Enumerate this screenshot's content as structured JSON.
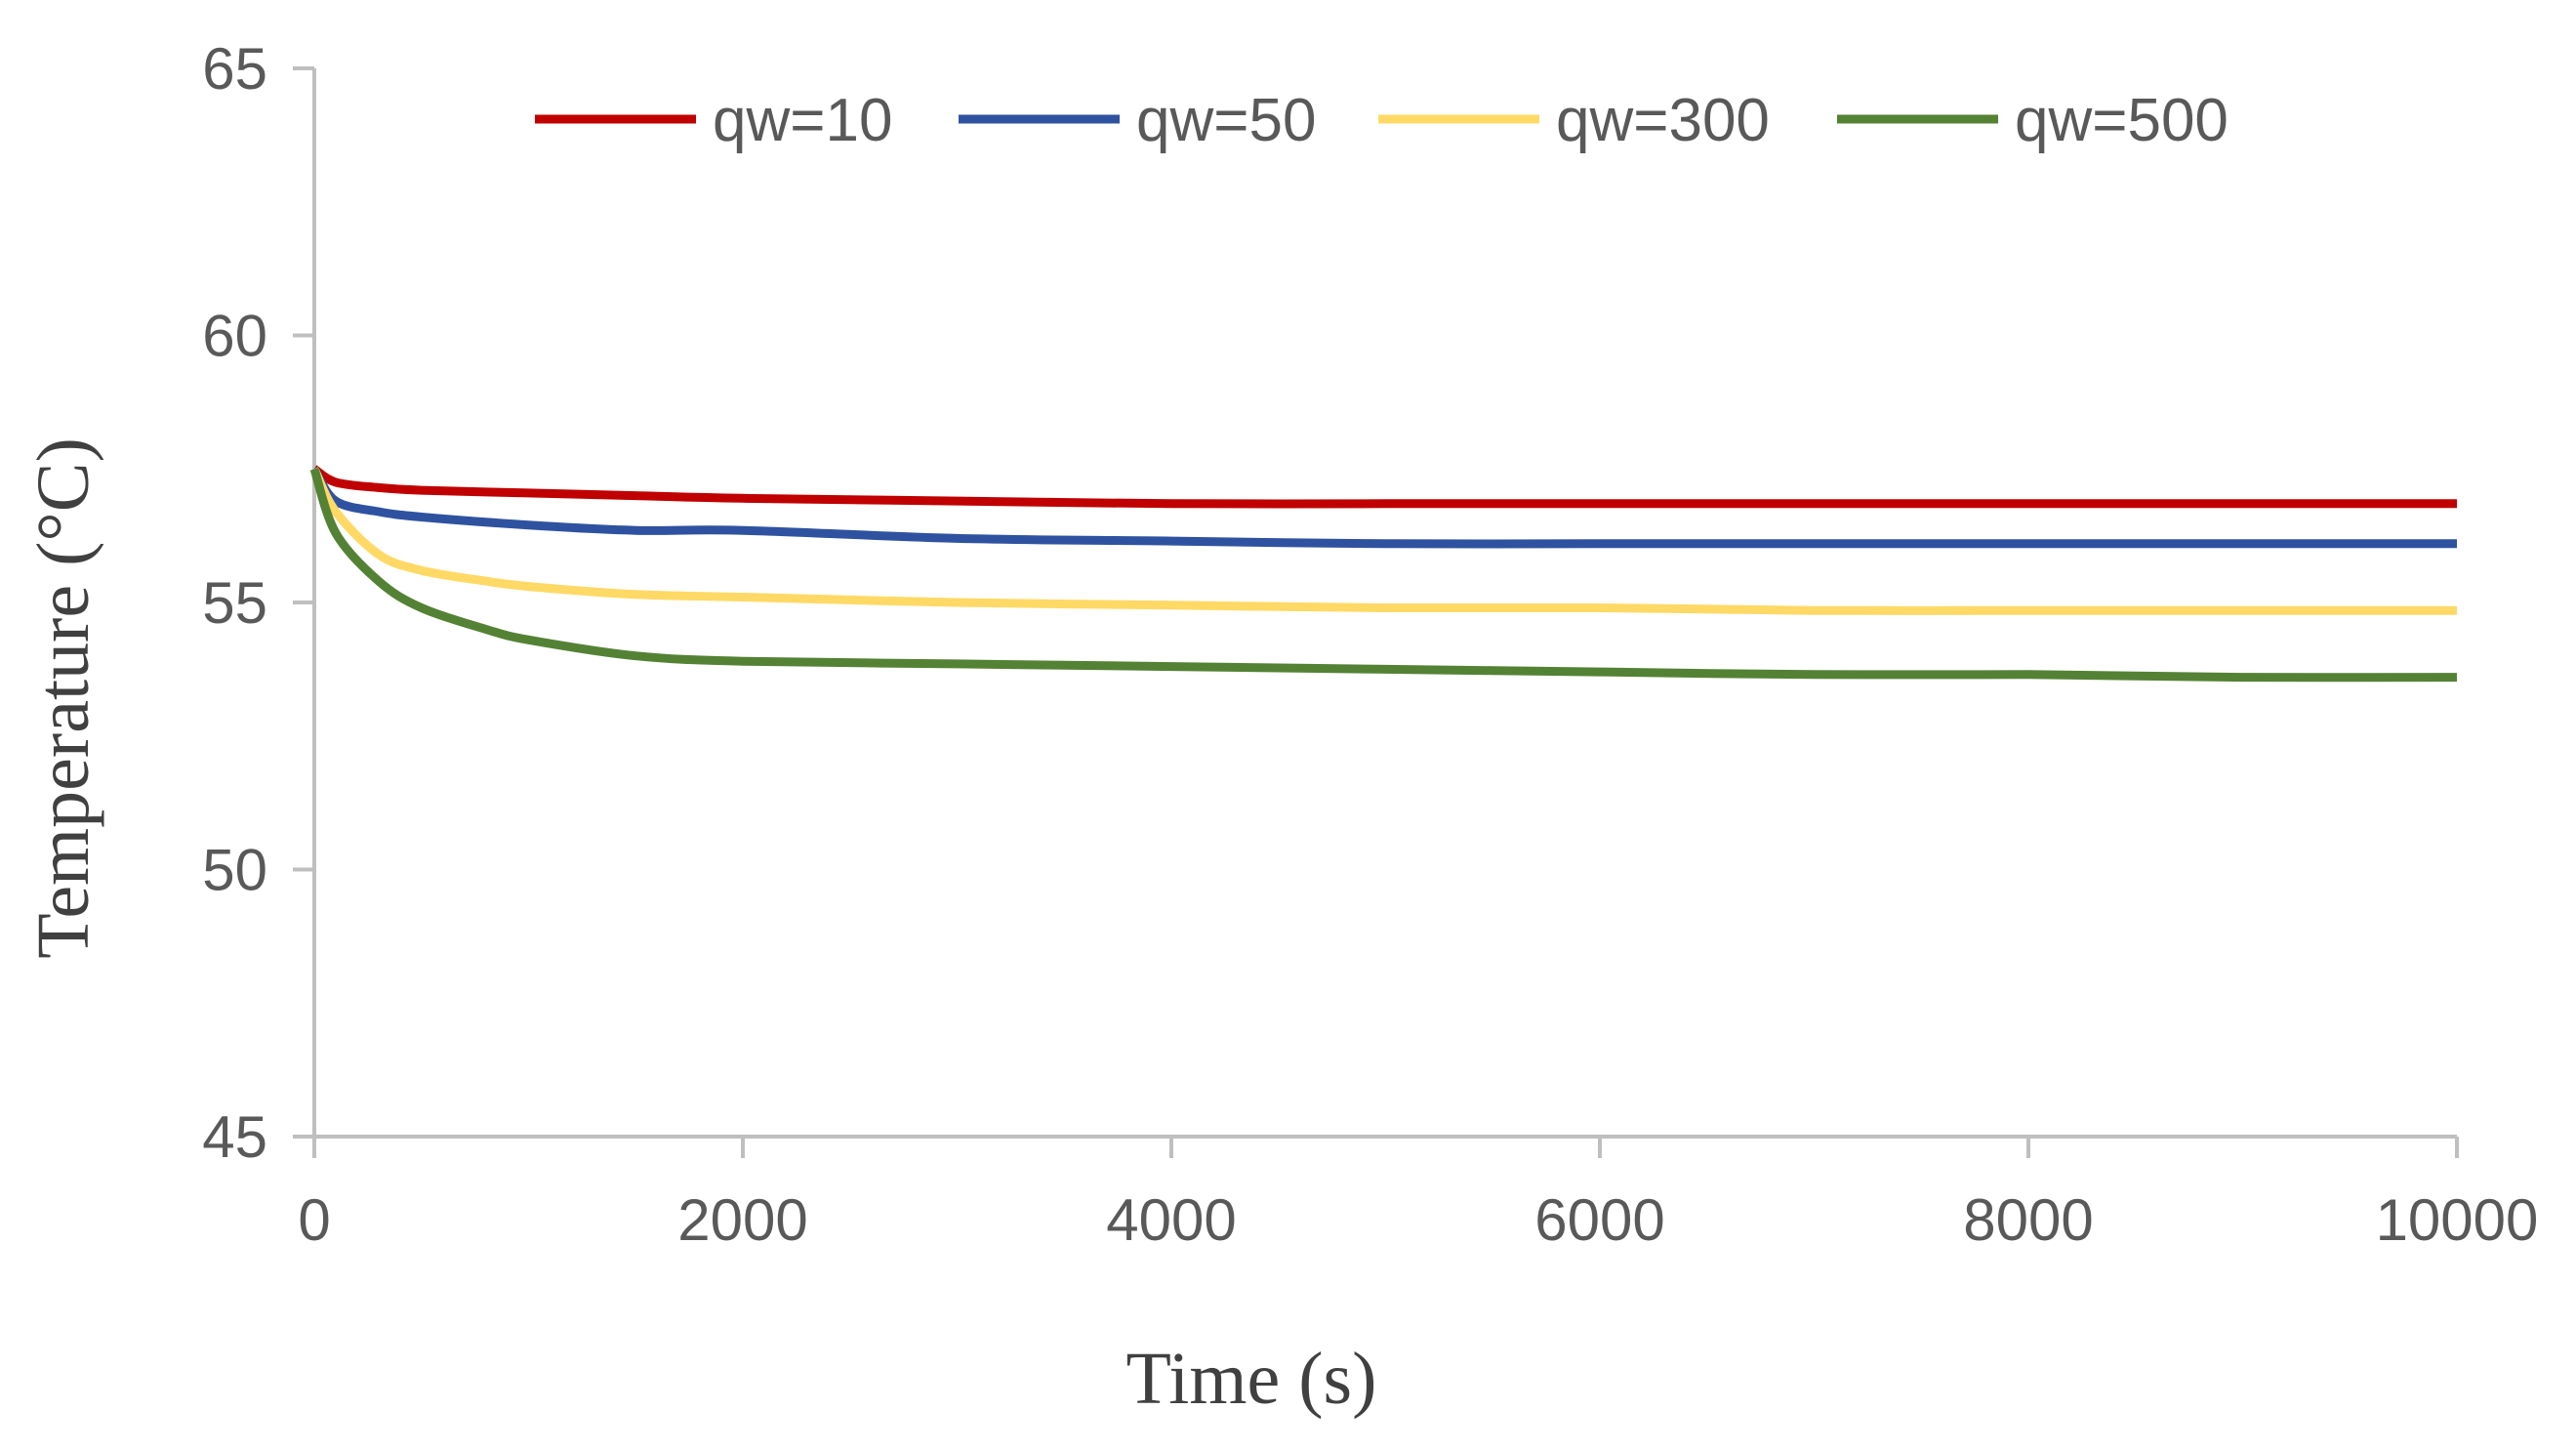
{
  "chart_data": {
    "type": "line",
    "title": "",
    "xlabel": "Time (s)",
    "ylabel": "Temperature (°C)",
    "xlim": [
      0,
      10000
    ],
    "ylim": [
      45,
      65
    ],
    "xticks": [
      0,
      2000,
      4000,
      6000,
      8000,
      10000
    ],
    "yticks": [
      45,
      50,
      55,
      60,
      65
    ],
    "xtick_labels": [
      "0",
      "2000",
      "4000",
      "6000",
      "8000",
      "10000"
    ],
    "ytick_labels": [
      "45",
      "50",
      "55",
      "60",
      "65"
    ],
    "grid": false,
    "legend_position": "top",
    "colors": {
      "axis": "#bfbfbf"
    },
    "series": [
      {
        "name": "qw=10",
        "color": "#c00000",
        "x": [
          0,
          100,
          300,
          500,
          1000,
          1500,
          2000,
          3000,
          4000,
          5000,
          6000,
          7000,
          8000,
          9000,
          10000
        ],
        "y": [
          57.5,
          57.25,
          57.15,
          57.1,
          57.05,
          57.0,
          56.95,
          56.9,
          56.85,
          56.85,
          56.85,
          56.85,
          56.85,
          56.85,
          56.85
        ]
      },
      {
        "name": "qw=50",
        "color": "#2f52a0",
        "x": [
          0,
          100,
          300,
          500,
          1000,
          1500,
          2000,
          3000,
          4000,
          5000,
          6000,
          7000,
          8000,
          9000,
          10000
        ],
        "y": [
          57.5,
          56.9,
          56.7,
          56.6,
          56.45,
          56.35,
          56.35,
          56.2,
          56.15,
          56.1,
          56.1,
          56.1,
          56.1,
          56.1,
          56.1
        ]
      },
      {
        "name": "qw=300",
        "color": "#ffd966",
        "x": [
          0,
          100,
          300,
          500,
          800,
          1000,
          1500,
          2000,
          3000,
          4000,
          5000,
          6000,
          7000,
          8000,
          9000,
          10000
        ],
        "y": [
          57.5,
          56.7,
          55.9,
          55.6,
          55.4,
          55.3,
          55.15,
          55.1,
          55.0,
          54.95,
          54.9,
          54.9,
          54.85,
          54.85,
          54.85,
          54.85
        ]
      },
      {
        "name": "qw=500",
        "color": "#548235",
        "x": [
          0,
          100,
          300,
          500,
          800,
          1000,
          1500,
          2000,
          3000,
          4000,
          5000,
          6000,
          7000,
          8000,
          9000,
          10000
        ],
        "y": [
          57.5,
          56.3,
          55.4,
          54.9,
          54.5,
          54.3,
          54.0,
          53.9,
          53.85,
          53.8,
          53.75,
          53.7,
          53.65,
          53.65,
          53.6,
          53.6
        ]
      }
    ]
  }
}
